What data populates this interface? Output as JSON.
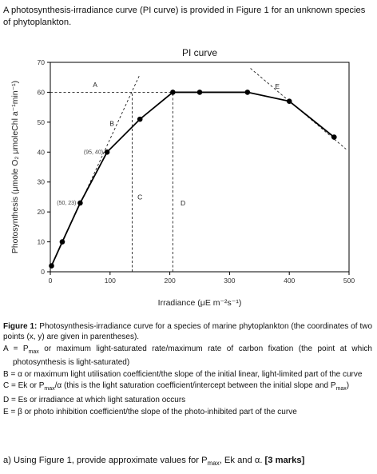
{
  "intro": "A photosynthesis-irradiance curve (PI curve) is provided in Figure 1 for an unknown species of phytoplankton.",
  "chart_data": {
    "type": "line",
    "title": "PI curve",
    "xlabel": "Irradiance (μE m⁻²s⁻¹)",
    "ylabel": "Photosynthesis (μmole O₂ μmoleChl a⁻¹min⁻¹)",
    "xlim": [
      0,
      500
    ],
    "ylim": [
      0,
      70
    ],
    "xticks": [
      "0",
      "100",
      "200",
      "300",
      "400",
      "500"
    ],
    "yticks": [
      "0",
      "10",
      "20",
      "30",
      "40",
      "50",
      "60",
      "70"
    ],
    "x": [
      2,
      20,
      50,
      95,
      150,
      205,
      250,
      330,
      400,
      475
    ],
    "y": [
      2,
      10,
      23,
      40,
      51,
      60,
      60,
      60,
      57,
      45
    ],
    "point_labels": [
      {
        "x": 50,
        "y": 23,
        "text": "(50, 23)"
      },
      {
        "x": 95,
        "y": 40,
        "text": "(95, 40)"
      }
    ],
    "annotations": [
      {
        "text": "A",
        "x": 75,
        "y": 62.5
      },
      {
        "text": "B",
        "x": 103,
        "y": 49.5
      },
      {
        "text": "C",
        "x": 150,
        "y": 25
      },
      {
        "text": "D",
        "x": 222,
        "y": 23
      },
      {
        "text": "E",
        "x": 380,
        "y": 62
      }
    ],
    "guides": {
      "pmax_line": {
        "y": 60,
        "x_from": 0,
        "x_to": 205
      },
      "initial_slope": {
        "from": [
          2,
          2
        ],
        "to": [
          150,
          66
        ]
      },
      "ek_line": {
        "x": 137,
        "y_from": 0,
        "y_to": 60
      },
      "es_line": {
        "x": 205,
        "y_from": 0,
        "y_to": 60
      },
      "inhibition_slope": {
        "from": [
          335,
          68
        ],
        "to": [
          495,
          41
        ]
      }
    },
    "grid": false,
    "legend": "none"
  },
  "figure": {
    "caption_label": "Figure 1:",
    "caption_text": " Photosynthesis-irradiance curve for a species of marine phytoplankton (the coordinates of two points (x, y) are given in parentheses).",
    "defs": [
      {
        "prefix": "A = P",
        "sub": "max",
        "suffix": " or maximum light-saturated rate/maximum rate of carbon fixation (the point at which photosynthesis is light-saturated)"
      },
      {
        "prefix": "B = α or maximum light utilisation coefficient/the slope of the initial linear, light-limited part of the curve",
        "sub": "",
        "suffix": ""
      },
      {
        "prefix": "C = Ek or P",
        "sub": "max",
        "suffix": "/α (this is the light saturation coefficient/intercept between the initial slope and P",
        "sub2": "max",
        "suffix2": ")"
      },
      {
        "prefix": "D = Es or irradiance at which light saturation occurs",
        "sub": "",
        "suffix": ""
      },
      {
        "prefix": "E = β or photo inhibition coefficient/the slope of the photo-inhibited part of the curve",
        "sub": "",
        "suffix": ""
      }
    ]
  },
  "question": {
    "text": "a)  Using Figure 1, provide approximate values for P",
    "sub": "max",
    "text2": ", Ek and α.  ",
    "marks": "[3 marks]"
  }
}
